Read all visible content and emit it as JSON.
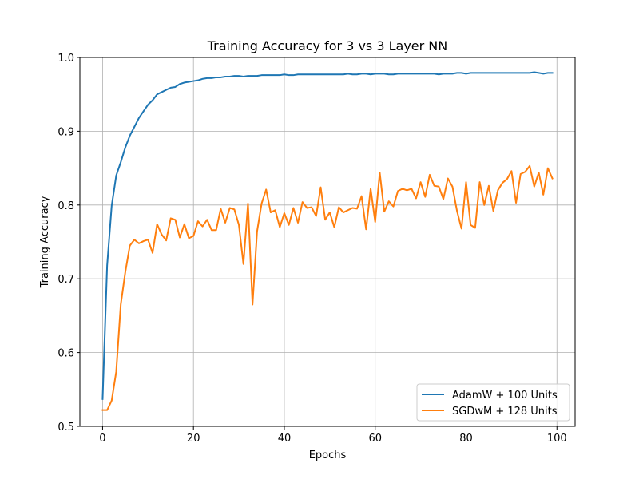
{
  "chart_data": {
    "type": "line",
    "title": "Training Accuracy for 3 vs 3 Layer NN",
    "xlabel": "Epochs",
    "ylabel": "Training Accuracy",
    "xlim": [
      -5,
      104
    ],
    "ylim": [
      0.5,
      1.0
    ],
    "xticks": [
      0,
      20,
      40,
      60,
      80,
      100
    ],
    "yticks": [
      0.5,
      0.6,
      0.7,
      0.8,
      0.9,
      1.0
    ],
    "ytick_labels": [
      "0.5",
      "0.6",
      "0.7",
      "0.8",
      "0.9",
      "1.0"
    ],
    "grid": true,
    "legend_position": "lower-right",
    "series": [
      {
        "name": "AdamW + 100 Units",
        "color": "#1f77b4",
        "x": [
          0,
          1,
          2,
          3,
          4,
          5,
          6,
          7,
          8,
          9,
          10,
          11,
          12,
          13,
          14,
          15,
          16,
          17,
          18,
          19,
          20,
          21,
          22,
          23,
          24,
          25,
          26,
          27,
          28,
          29,
          30,
          31,
          32,
          33,
          34,
          35,
          36,
          37,
          38,
          39,
          40,
          41,
          42,
          43,
          44,
          45,
          46,
          47,
          48,
          49,
          50,
          51,
          52,
          53,
          54,
          55,
          56,
          57,
          58,
          59,
          60,
          61,
          62,
          63,
          64,
          65,
          66,
          67,
          68,
          69,
          70,
          71,
          72,
          73,
          74,
          75,
          76,
          77,
          78,
          79,
          80,
          81,
          82,
          83,
          84,
          85,
          86,
          87,
          88,
          89,
          90,
          91,
          92,
          93,
          94,
          95,
          96,
          97,
          98,
          99
        ],
        "y": [
          0.537,
          0.718,
          0.799,
          0.84,
          0.858,
          0.878,
          0.894,
          0.906,
          0.918,
          0.927,
          0.936,
          0.942,
          0.95,
          0.953,
          0.956,
          0.959,
          0.96,
          0.964,
          0.966,
          0.967,
          0.968,
          0.969,
          0.971,
          0.972,
          0.972,
          0.973,
          0.973,
          0.974,
          0.974,
          0.975,
          0.975,
          0.974,
          0.975,
          0.975,
          0.975,
          0.976,
          0.976,
          0.976,
          0.976,
          0.976,
          0.977,
          0.976,
          0.976,
          0.977,
          0.977,
          0.977,
          0.977,
          0.977,
          0.977,
          0.977,
          0.977,
          0.977,
          0.977,
          0.977,
          0.978,
          0.977,
          0.977,
          0.978,
          0.978,
          0.977,
          0.978,
          0.978,
          0.978,
          0.977,
          0.977,
          0.978,
          0.978,
          0.978,
          0.978,
          0.978,
          0.978,
          0.978,
          0.978,
          0.978,
          0.977,
          0.978,
          0.978,
          0.978,
          0.979,
          0.979,
          0.978,
          0.979,
          0.979,
          0.979,
          0.979,
          0.979,
          0.979,
          0.979,
          0.979,
          0.979,
          0.979,
          0.979,
          0.979,
          0.979,
          0.979,
          0.98,
          0.979,
          0.978,
          0.979,
          0.979
        ]
      },
      {
        "name": "SGDwM + 128 Units",
        "color": "#ff7f0e",
        "x": [
          0,
          1,
          2,
          3,
          4,
          5,
          6,
          7,
          8,
          9,
          10,
          11,
          12,
          13,
          14,
          15,
          16,
          17,
          18,
          19,
          20,
          21,
          22,
          23,
          24,
          25,
          26,
          27,
          28,
          29,
          30,
          31,
          32,
          33,
          34,
          35,
          36,
          37,
          38,
          39,
          40,
          41,
          42,
          43,
          44,
          45,
          46,
          47,
          48,
          49,
          50,
          51,
          52,
          53,
          54,
          55,
          56,
          57,
          58,
          59,
          60,
          61,
          62,
          63,
          64,
          65,
          66,
          67,
          68,
          69,
          70,
          71,
          72,
          73,
          74,
          75,
          76,
          77,
          78,
          79,
          80,
          81,
          82,
          83,
          84,
          85,
          86,
          87,
          88,
          89,
          90,
          91,
          92,
          93,
          94,
          95,
          96,
          97,
          98,
          99
        ],
        "y": [
          0.522,
          0.522,
          0.535,
          0.574,
          0.665,
          0.709,
          0.745,
          0.753,
          0.748,
          0.751,
          0.753,
          0.735,
          0.774,
          0.76,
          0.752,
          0.782,
          0.78,
          0.756,
          0.774,
          0.755,
          0.758,
          0.778,
          0.771,
          0.78,
          0.766,
          0.766,
          0.795,
          0.776,
          0.796,
          0.794,
          0.773,
          0.72,
          0.802,
          0.665,
          0.764,
          0.802,
          0.821,
          0.79,
          0.793,
          0.77,
          0.789,
          0.773,
          0.796,
          0.776,
          0.804,
          0.796,
          0.797,
          0.785,
          0.824,
          0.78,
          0.79,
          0.77,
          0.797,
          0.79,
          0.793,
          0.796,
          0.795,
          0.812,
          0.767,
          0.822,
          0.777,
          0.844,
          0.791,
          0.805,
          0.798,
          0.819,
          0.822,
          0.82,
          0.822,
          0.809,
          0.831,
          0.811,
          0.841,
          0.826,
          0.825,
          0.808,
          0.836,
          0.825,
          0.792,
          0.768,
          0.831,
          0.773,
          0.769,
          0.831,
          0.8,
          0.826,
          0.792,
          0.82,
          0.83,
          0.835,
          0.846,
          0.803,
          0.842,
          0.845,
          0.853,
          0.825,
          0.844,
          0.814,
          0.85,
          0.836
        ]
      }
    ]
  }
}
